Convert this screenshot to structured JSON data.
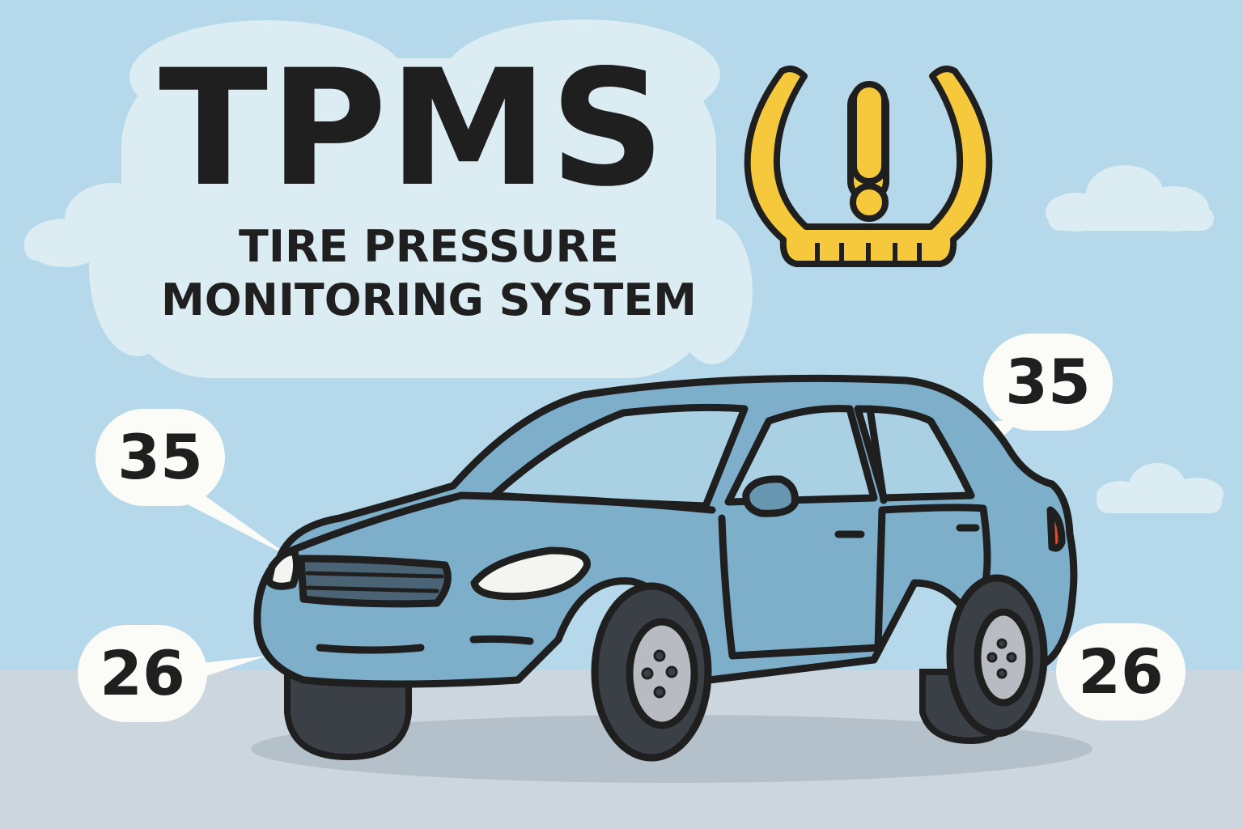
{
  "title": "TPMS",
  "subtitle_lines": [
    "TIRE PRESSURE",
    "MONITORING SYSTEM"
  ],
  "warning_icon": "tpms-warning-icon",
  "tire_pressures": {
    "front_left": "35",
    "rear_right": "35",
    "front_right": "26",
    "rear_left": "26"
  },
  "colors": {
    "sky": "#b5d9ea",
    "ground": "#ccd6de",
    "car_body": "#7dafcb",
    "warning_yellow": "#f5c93b",
    "outline": "#1f1f1f",
    "bubble": "#fbfbf8",
    "title_backdrop": "#dbecf3"
  }
}
